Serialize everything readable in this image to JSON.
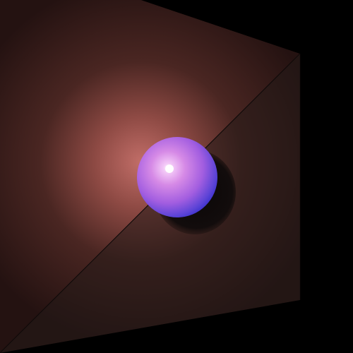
{
  "scene": {
    "background_color": "#000000",
    "box": {
      "left_wall_base": "#2a1512",
      "left_wall_glow": "#c0706a",
      "right_wall_color": "#221a18",
      "edge_line_color": "#0a0505"
    },
    "sphere": {
      "core_highlight": "#ffffff",
      "light_color": "#e28fe6",
      "mid_color": "#b06ad9",
      "rim_color": "#3a2fd0",
      "shadow_color": "#0e0a0a"
    },
    "icons": [
      "sphere-icon",
      "light-glow-icon",
      "shadow-icon"
    ]
  }
}
